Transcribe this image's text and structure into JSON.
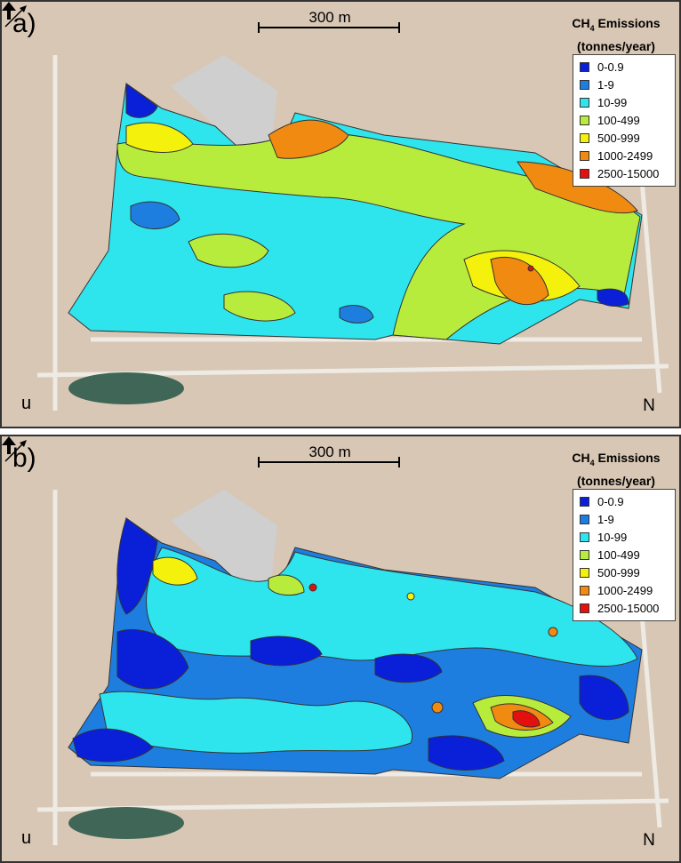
{
  "panels": [
    {
      "letter": "a)",
      "scale_label": "300 m",
      "legend_title_prefix": "CH",
      "legend_title_sub": "4",
      "legend_title_rest": " Emissions",
      "legend_units": "(tonnes/year)",
      "u_label": "u",
      "n_label": "N"
    },
    {
      "letter": "b)",
      "scale_label": "300 m",
      "legend_title_prefix": "CH",
      "legend_title_sub": "4",
      "legend_title_rest": " Emissions",
      "legend_units": "(tonnes/year)",
      "u_label": "u",
      "n_label": "N"
    }
  ],
  "legend": [
    {
      "label": "0-0.9",
      "color": "#0a1fd8"
    },
    {
      "label": "1-9",
      "color": "#1e7ee0"
    },
    {
      "label": "10-99",
      "color": "#2ee5ee"
    },
    {
      "label": "100-499",
      "color": "#b8ec3c"
    },
    {
      "label": "500-999",
      "color": "#f4f20c"
    },
    {
      "label": "1000-2499",
      "color": "#f08a10"
    },
    {
      "label": "2500-15000",
      "color": "#e41010"
    }
  ],
  "colors": {
    "terrain": "#d8c7b4",
    "road": "#eeeae4",
    "pond": "#3f6656",
    "pit": "#cfcfcf"
  }
}
